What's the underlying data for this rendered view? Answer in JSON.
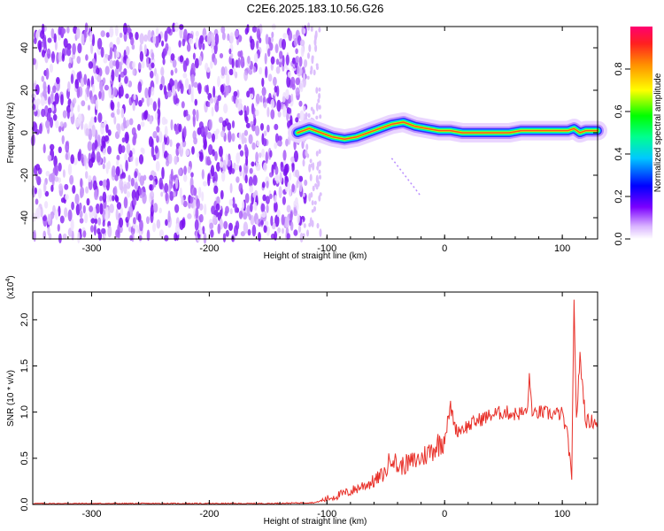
{
  "title": "C2E6.2025.183.10.56.G26",
  "chart_data": [
    {
      "type": "heatmap",
      "xlabel": "Height of straight line (km)",
      "ylabel": "Frequency (Hz)",
      "xlim": [
        -350,
        130
      ],
      "ylim": [
        -50,
        50
      ],
      "xticks": [
        -300,
        -200,
        -100,
        0,
        100
      ],
      "yticks": [
        -40,
        -20,
        0,
        20,
        40
      ],
      "colorbar": {
        "label": "Normalized spectral amplitude",
        "range": [
          0,
          1
        ],
        "ticks": [
          "0.0",
          "0.2",
          "0.4",
          "0.6",
          "0.8"
        ]
      },
      "ridge": {
        "x": [
          -125,
          -115,
          -105,
          -95,
          -85,
          -75,
          -65,
          -55,
          -45,
          -35,
          -25,
          -15,
          -5,
          5,
          15,
          25,
          35,
          45,
          55,
          65,
          75,
          85,
          95,
          105,
          110,
          115,
          120,
          130
        ],
        "y": [
          0,
          2,
          0,
          -2,
          -3,
          -2,
          0,
          2,
          4,
          5,
          3,
          2,
          1,
          1,
          0,
          0,
          0,
          0,
          0,
          1,
          1,
          1,
          1,
          1,
          2,
          0,
          1,
          1
        ]
      }
    },
    {
      "type": "line",
      "xlabel": "Height of straight line (km)",
      "ylabel": "SNR (10 * v/v)",
      "y_scale_label": "(x10",
      "y_scale_exponent": "4",
      "xlim": [
        -350,
        130
      ],
      "ylim": [
        0,
        2.3
      ],
      "xticks": [
        -300,
        -200,
        -100,
        0,
        100
      ],
      "yticks": [
        "0.0",
        "0.5",
        "1.0",
        "1.5",
        "2.0"
      ],
      "series": [
        {
          "color": "#e8312a",
          "x": [
            -350,
            -300,
            -250,
            -200,
            -150,
            -110,
            -100,
            -90,
            -80,
            -70,
            -60,
            -50,
            -45,
            -40,
            -30,
            -20,
            -10,
            0,
            5,
            10,
            20,
            30,
            40,
            50,
            60,
            70,
            72,
            75,
            80,
            90,
            100,
            105,
            108,
            110,
            112,
            115,
            120,
            130
          ],
          "y": [
            0.01,
            0.01,
            0.01,
            0.01,
            0.01,
            0.02,
            0.06,
            0.1,
            0.14,
            0.2,
            0.25,
            0.35,
            0.55,
            0.4,
            0.45,
            0.5,
            0.6,
            0.72,
            1.05,
            0.8,
            0.85,
            0.92,
            0.97,
            1.0,
            0.98,
            1.0,
            1.35,
            0.95,
            1.0,
            0.98,
            0.98,
            0.7,
            0.22,
            2.25,
            0.9,
            1.6,
            0.9,
            0.9
          ]
        }
      ]
    }
  ]
}
